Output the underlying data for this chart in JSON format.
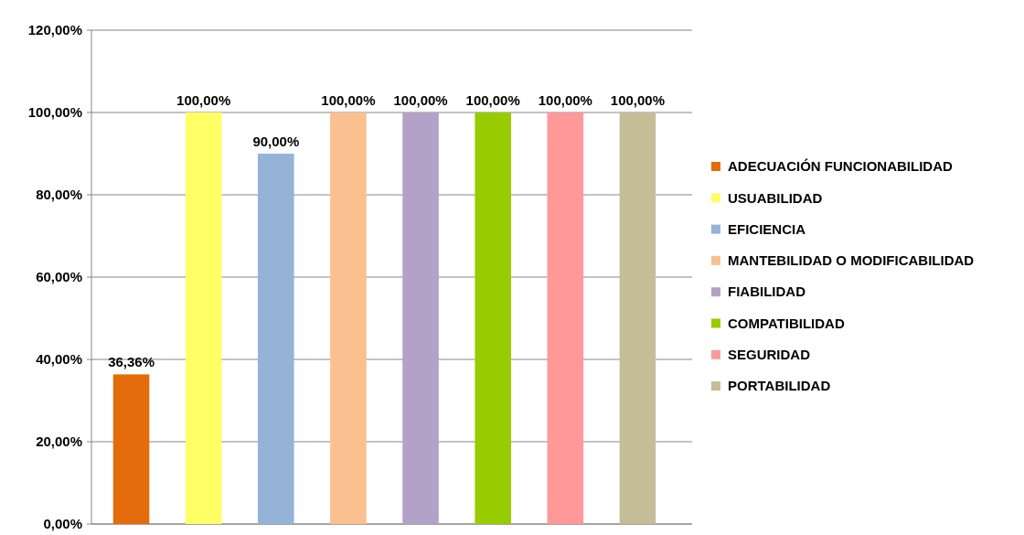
{
  "chart_data": {
    "type": "bar",
    "categories": [
      null,
      null,
      null,
      null,
      null,
      null,
      null,
      null
    ],
    "series": [
      {
        "name": "ADECUACIÓN FUNCIONABILIDAD",
        "color": "#e46c0a",
        "values": [
          36.36,
          null,
          null,
          null,
          null,
          null,
          null,
          null
        ],
        "value_labels": [
          "36,36%",
          null,
          null,
          null,
          null,
          null,
          null,
          null
        ]
      },
      {
        "name": "USUABILIDAD",
        "color": "#ffff66",
        "values": [
          null,
          100,
          null,
          null,
          null,
          null,
          null,
          null
        ],
        "value_labels": [
          null,
          "100,00%",
          null,
          null,
          null,
          null,
          null,
          null
        ]
      },
      {
        "name": "EFICIENCIA",
        "color": "#95b3d7",
        "values": [
          null,
          null,
          90,
          null,
          null,
          null,
          null,
          null
        ],
        "value_labels": [
          null,
          null,
          "90,00%",
          null,
          null,
          null,
          null,
          null
        ]
      },
      {
        "name": "MANTEBILIDAD O MODIFICABILIDAD",
        "color": "#fac090",
        "values": [
          null,
          null,
          null,
          100,
          null,
          null,
          null,
          null
        ],
        "value_labels": [
          null,
          null,
          null,
          "100,00%",
          null,
          null,
          null,
          null
        ]
      },
      {
        "name": "FIABILIDAD",
        "color": "#b3a2c7",
        "values": [
          null,
          null,
          null,
          null,
          100,
          null,
          null,
          null
        ],
        "value_labels": [
          null,
          null,
          null,
          null,
          "100,00%",
          null,
          null,
          null
        ]
      },
      {
        "name": "COMPATIBILIDAD",
        "color": "#99cc00",
        "values": [
          null,
          null,
          null,
          null,
          null,
          100,
          null,
          null
        ],
        "value_labels": [
          null,
          null,
          null,
          null,
          null,
          "100,00%",
          null,
          null
        ]
      },
      {
        "name": "SEGURIDAD",
        "color": "#ff9999",
        "values": [
          null,
          null,
          null,
          null,
          null,
          null,
          100,
          null
        ],
        "value_labels": [
          null,
          null,
          null,
          null,
          null,
          null,
          "100,00%",
          null
        ]
      },
      {
        "name": "PORTABILIDAD",
        "color": "#c4bd97",
        "values": [
          null,
          null,
          null,
          null,
          null,
          null,
          null,
          100
        ],
        "value_labels": [
          null,
          null,
          null,
          null,
          null,
          null,
          null,
          "100,00%"
        ]
      }
    ],
    "ylim": [
      0,
      120
    ],
    "yticks": [
      {
        "value": 0,
        "label": "0,00%"
      },
      {
        "value": 20,
        "label": "20,00%"
      },
      {
        "value": 40,
        "label": "40,00%"
      },
      {
        "value": 60,
        "label": "60,00%"
      },
      {
        "value": 80,
        "label": "80,00%"
      },
      {
        "value": 100,
        "label": "100,00%"
      },
      {
        "value": 120,
        "label": "120,00%"
      }
    ],
    "grid": "y",
    "legend": "right"
  }
}
